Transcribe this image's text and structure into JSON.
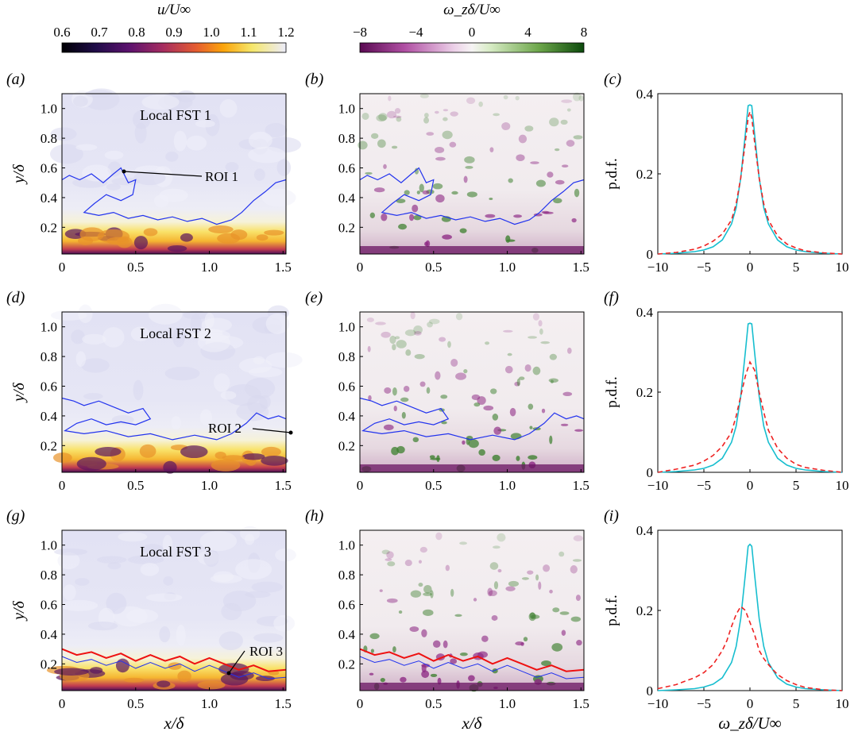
{
  "colorbars": [
    {
      "title": "u/U∞",
      "ticks": [
        "0.6",
        "0.7",
        "0.8",
        "0.9",
        "1.0",
        "1.1",
        "1.2"
      ],
      "range": [
        0.6,
        1.2
      ],
      "colormap": "inferno"
    },
    {
      "title": "ω_zδ/U∞",
      "ticks": [
        "−8",
        "−4",
        "0",
        "4",
        "8"
      ],
      "range": [
        -8,
        8
      ],
      "colormap": "purple-white-green"
    }
  ],
  "panel_letters": [
    "(a)",
    "(b)",
    "(c)",
    "(d)",
    "(e)",
    "(f)",
    "(g)",
    "(h)",
    "(i)"
  ],
  "rows": [
    {
      "fst_label": "Local FST 1",
      "roi_label": "ROI 1"
    },
    {
      "fst_label": "Local FST 2",
      "roi_label": "ROI 2"
    },
    {
      "fst_label": "Local FST 3",
      "roi_label": "ROI 3"
    }
  ],
  "field_axes": {
    "xlabel": "x/δ",
    "ylabel": "y/δ",
    "xticks": [
      "0",
      "0.5",
      "1.0",
      "1.5"
    ],
    "yticks": [
      "0.2",
      "0.4",
      "0.6",
      "0.8",
      "1.0"
    ],
    "xlim": [
      0,
      1.52
    ],
    "ylim": [
      0.02,
      1.1
    ]
  },
  "pdf_axes": {
    "xlabel": "ω_zδ/U∞",
    "ylabel": "p.d.f.",
    "xticks": [
      "−10",
      "−5",
      "0",
      "5",
      "10"
    ],
    "yticks": [
      "0",
      "0.2",
      "0.4"
    ],
    "xlim": [
      -10,
      10
    ],
    "ylim": [
      0,
      0.4
    ]
  },
  "colors": {
    "cyan": "#17becf",
    "red_dashed": "#ee2222",
    "interface_blue": "#2233ee",
    "interface_red": "#ee1111",
    "field_bg": "#e3e3f4"
  },
  "chart_data": [
    {
      "type": "line",
      "title": "(c)",
      "xlabel": "",
      "ylabel": "p.d.f.",
      "xlim": [
        -10,
        10
      ],
      "ylim": [
        0,
        0.4
      ],
      "series": [
        {
          "style": "solid",
          "color": "#17becf",
          "x": [
            -10,
            -8,
            -6,
            -5,
            -4,
            -3,
            -2,
            -1.5,
            -1,
            -0.5,
            -0.2,
            0,
            0.2,
            0.5,
            1,
            1.5,
            2,
            3,
            4,
            5,
            6,
            8,
            10
          ],
          "y": [
            0,
            0.002,
            0.006,
            0.01,
            0.018,
            0.035,
            0.075,
            0.115,
            0.19,
            0.3,
            0.37,
            0.372,
            0.37,
            0.3,
            0.19,
            0.115,
            0.075,
            0.035,
            0.018,
            0.01,
            0.006,
            0.002,
            0
          ]
        },
        {
          "style": "dashed",
          "color": "#ee2222",
          "x": [
            -10,
            -8,
            -6,
            -5,
            -4,
            -3,
            -2,
            -1.5,
            -1,
            -0.5,
            -0.2,
            0,
            0.2,
            0.5,
            1,
            1.5,
            2,
            3,
            4,
            5,
            6,
            8,
            10
          ],
          "y": [
            0,
            0.004,
            0.012,
            0.02,
            0.032,
            0.05,
            0.085,
            0.125,
            0.19,
            0.28,
            0.34,
            0.355,
            0.34,
            0.28,
            0.19,
            0.125,
            0.085,
            0.045,
            0.025,
            0.015,
            0.008,
            0.003,
            0
          ]
        }
      ]
    },
    {
      "type": "line",
      "title": "(f)",
      "xlabel": "",
      "ylabel": "p.d.f.",
      "xlim": [
        -10,
        10
      ],
      "ylim": [
        0,
        0.4
      ],
      "series": [
        {
          "style": "solid",
          "color": "#17becf",
          "x": [
            -10,
            -8,
            -6,
            -5,
            -4,
            -3,
            -2,
            -1.5,
            -1,
            -0.5,
            -0.2,
            0,
            0.2,
            0.5,
            1,
            1.5,
            2,
            3,
            4,
            5,
            6,
            8,
            10
          ],
          "y": [
            0,
            0.002,
            0.006,
            0.01,
            0.018,
            0.035,
            0.075,
            0.115,
            0.19,
            0.3,
            0.37,
            0.372,
            0.37,
            0.3,
            0.19,
            0.115,
            0.075,
            0.035,
            0.018,
            0.01,
            0.006,
            0.002,
            0
          ]
        },
        {
          "style": "dashed",
          "color": "#ee2222",
          "x": [
            -10,
            -8,
            -6,
            -5,
            -4,
            -3,
            -2,
            -1.5,
            -1,
            -0.5,
            0,
            0.5,
            1,
            1.5,
            2,
            3,
            4,
            5,
            6,
            8,
            10
          ],
          "y": [
            0,
            0.008,
            0.018,
            0.028,
            0.042,
            0.065,
            0.1,
            0.14,
            0.19,
            0.24,
            0.275,
            0.255,
            0.2,
            0.15,
            0.105,
            0.06,
            0.035,
            0.02,
            0.012,
            0.005,
            0
          ]
        }
      ]
    },
    {
      "type": "line",
      "title": "(i)",
      "xlabel": "ω_zδ/U∞",
      "ylabel": "p.d.f.",
      "xlim": [
        -10,
        10
      ],
      "ylim": [
        0,
        0.4
      ],
      "series": [
        {
          "style": "solid",
          "color": "#17becf",
          "x": [
            -10,
            -8,
            -6,
            -5,
            -4,
            -3,
            -2,
            -1.5,
            -1,
            -0.5,
            -0.2,
            0,
            0.2,
            0.5,
            1,
            1.5,
            2,
            3,
            4,
            5,
            6,
            8,
            10
          ],
          "y": [
            0,
            0.002,
            0.005,
            0.009,
            0.016,
            0.032,
            0.07,
            0.11,
            0.18,
            0.29,
            0.36,
            0.365,
            0.36,
            0.29,
            0.18,
            0.11,
            0.07,
            0.032,
            0.016,
            0.009,
            0.005,
            0.002,
            0
          ]
        },
        {
          "style": "dashed",
          "color": "#ee2222",
          "x": [
            -10,
            -9,
            -8,
            -7,
            -6,
            -5,
            -4,
            -3,
            -2.5,
            -2,
            -1.5,
            -1,
            -0.5,
            0,
            0.5,
            1,
            1.5,
            2,
            2.5,
            3,
            4,
            5,
            6,
            8,
            10
          ],
          "y": [
            0.005,
            0.01,
            0.015,
            0.024,
            0.032,
            0.045,
            0.065,
            0.1,
            0.125,
            0.16,
            0.19,
            0.21,
            0.2,
            0.17,
            0.14,
            0.1,
            0.08,
            0.065,
            0.052,
            0.04,
            0.025,
            0.015,
            0.008,
            0.002,
            0
          ]
        }
      ]
    }
  ]
}
